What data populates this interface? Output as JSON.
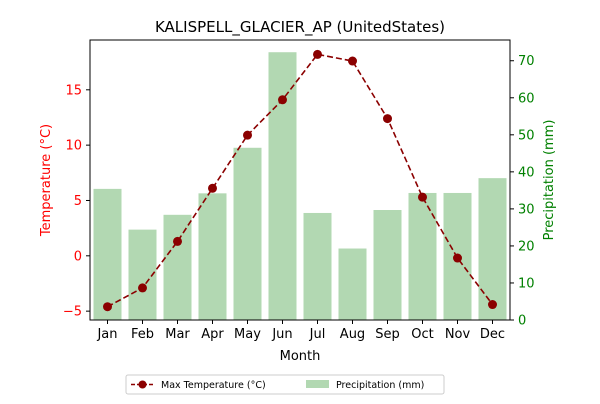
{
  "chart_data": {
    "type": "bar+line",
    "title": "KALISPELL_GLACIER_AP (UnitedStates)",
    "xlabel": "Month",
    "ylabel_left": "Temperature (°C)",
    "ylabel_right": "Precipitation (mm)",
    "categories": [
      "Jan",
      "Feb",
      "Mar",
      "Apr",
      "May",
      "Jun",
      "Jul",
      "Aug",
      "Sep",
      "Oct",
      "Nov",
      "Dec"
    ],
    "series": [
      {
        "name": "Max Temperature (°C)",
        "type": "line",
        "axis": "left",
        "color": "#8b0000",
        "values": [
          -4.6,
          -2.9,
          1.3,
          6.1,
          10.9,
          14.1,
          18.2,
          17.6,
          12.4,
          5.3,
          -0.2,
          -4.4
        ]
      },
      {
        "name": "Precipitation (mm)",
        "type": "bar",
        "axis": "right",
        "color": "#b2d8b2",
        "values": [
          35.4,
          24.4,
          28.4,
          34.2,
          46.5,
          72.3,
          28.9,
          19.3,
          29.7,
          34.3,
          34.3,
          38.3
        ]
      }
    ],
    "ylim_left": [
      -5.8,
      19.5
    ],
    "ylim_right": [
      0,
      75.6
    ],
    "yticks_left": [
      -5,
      0,
      5,
      10,
      15
    ],
    "yticks_right": [
      0,
      10,
      20,
      30,
      40,
      50,
      60,
      70
    ],
    "left_axis_color": "#ff0000",
    "right_axis_color": "#008000",
    "legend_position": "bottom-center",
    "grid": false
  }
}
